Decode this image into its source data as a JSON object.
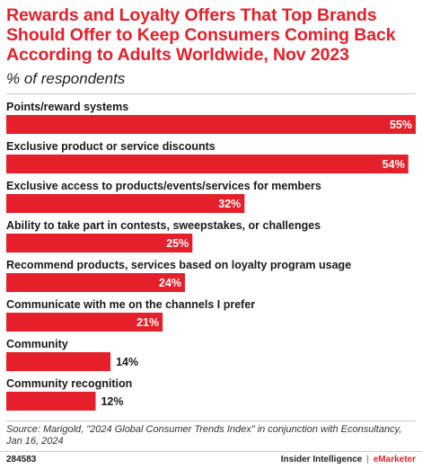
{
  "chart_data": {
    "type": "bar",
    "orientation": "horizontal",
    "title": "Rewards and Loyalty Offers That Top Brands Should Offer to Keep Consumers Coming Back According to Adults Worldwide, Nov 2023",
    "subtitle": "% of respondents",
    "categories": [
      "Points/reward systems",
      "Exclusive product or service discounts",
      "Exclusive access to products/events/services for members",
      "Ability to take part in contests, sweepstakes, or challenges",
      "Recommend products, services based on loyalty program usage",
      "Communicate with me on the channels I prefer",
      "Community",
      "Community recognition"
    ],
    "values": [
      55,
      54,
      32,
      25,
      24,
      21,
      14,
      12
    ],
    "value_labels": [
      "55%",
      "54%",
      "32%",
      "25%",
      "24%",
      "21%",
      "14%",
      "12%"
    ],
    "xlim": [
      0,
      55
    ],
    "bar_color": "#e5202a",
    "grid": false,
    "legend": "none"
  },
  "footer": {
    "source": "Source: Marigold, \"2024 Global Consumer Trends Index\" in conjunction with Econsultancy, Jan 16, 2024",
    "chart_id": "284583",
    "brand_left": "Insider Intelligence",
    "brand_separator": "|",
    "brand_right": "eMarketer"
  },
  "colors": {
    "accent": "#e5202a",
    "divider": "#c9c9c9"
  }
}
